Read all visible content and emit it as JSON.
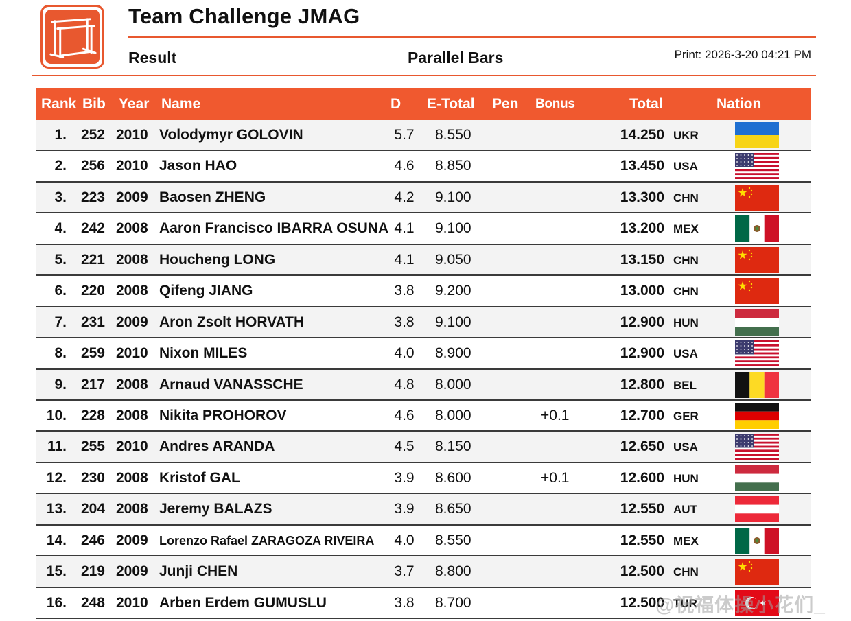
{
  "header": {
    "title": "Team Challenge JMAG",
    "section": "Result",
    "event": "Parallel Bars",
    "print": "Print: 2026-3-20 04:21 PM"
  },
  "columns": {
    "rank": "Rank",
    "bib": "Bib",
    "year": "Year",
    "name": "Name",
    "d": "D",
    "e_total": "E-Total",
    "pen": "Pen",
    "bonus": "Bonus",
    "total": "Total",
    "nation": "Nation"
  },
  "rows": [
    {
      "rank": "1.",
      "bib": "252",
      "year": "2010",
      "name": "Volodymyr GOLOVIN",
      "d": "5.7",
      "e": "8.550",
      "bonus": "",
      "total": "14.250",
      "nation": "UKR",
      "flag_icon": "ukraine-flag-icon"
    },
    {
      "rank": "2.",
      "bib": "256",
      "year": "2010",
      "name": "Jason HAO",
      "d": "4.6",
      "e": "8.850",
      "bonus": "",
      "total": "13.450",
      "nation": "USA",
      "flag_icon": "usa-flag-icon"
    },
    {
      "rank": "3.",
      "bib": "223",
      "year": "2009",
      "name": "Baosen ZHENG",
      "d": "4.2",
      "e": "9.100",
      "bonus": "",
      "total": "13.300",
      "nation": "CHN",
      "flag_icon": "china-flag-icon"
    },
    {
      "rank": "4.",
      "bib": "242",
      "year": "2008",
      "name": "Aaron Francisco IBARRA OSUNA",
      "d": "4.1",
      "e": "9.100",
      "bonus": "",
      "total": "13.200",
      "nation": "MEX",
      "flag_icon": "mexico-flag-icon"
    },
    {
      "rank": "5.",
      "bib": "221",
      "year": "2008",
      "name": "Houcheng LONG",
      "d": "4.1",
      "e": "9.050",
      "bonus": "",
      "total": "13.150",
      "nation": "CHN",
      "flag_icon": "china-flag-icon"
    },
    {
      "rank": "6.",
      "bib": "220",
      "year": "2008",
      "name": "Qifeng JIANG",
      "d": "3.8",
      "e": "9.200",
      "bonus": "",
      "total": "13.000",
      "nation": "CHN",
      "flag_icon": "china-flag-icon"
    },
    {
      "rank": "7.",
      "bib": "231",
      "year": "2009",
      "name": "Aron Zsolt HORVATH",
      "d": "3.8",
      "e": "9.100",
      "bonus": "",
      "total": "12.900",
      "nation": "HUN",
      "flag_icon": "hungary-flag-icon"
    },
    {
      "rank": "8.",
      "bib": "259",
      "year": "2010",
      "name": "Nixon MILES",
      "d": "4.0",
      "e": "8.900",
      "bonus": "",
      "total": "12.900",
      "nation": "USA",
      "flag_icon": "usa-flag-icon"
    },
    {
      "rank": "9.",
      "bib": "217",
      "year": "2008",
      "name": "Arnaud VANASSCHE",
      "d": "4.8",
      "e": "8.000",
      "bonus": "",
      "total": "12.800",
      "nation": "BEL",
      "flag_icon": "belgium-flag-icon"
    },
    {
      "rank": "10.",
      "bib": "228",
      "year": "2008",
      "name": "Nikita PROHOROV",
      "d": "4.6",
      "e": "8.000",
      "bonus": "+0.1",
      "total": "12.700",
      "nation": "GER",
      "flag_icon": "germany-flag-icon"
    },
    {
      "rank": "11.",
      "bib": "255",
      "year": "2010",
      "name": "Andres ARANDA",
      "d": "4.5",
      "e": "8.150",
      "bonus": "",
      "total": "12.650",
      "nation": "USA",
      "flag_icon": "usa-flag-icon"
    },
    {
      "rank": "12.",
      "bib": "230",
      "year": "2008",
      "name": "Kristof GAL",
      "d": "3.9",
      "e": "8.600",
      "bonus": "+0.1",
      "total": "12.600",
      "nation": "HUN",
      "flag_icon": "hungary-flag-icon"
    },
    {
      "rank": "13.",
      "bib": "204",
      "year": "2008",
      "name": "Jeremy BALAZS",
      "d": "3.9",
      "e": "8.650",
      "bonus": "",
      "total": "12.550",
      "nation": "AUT",
      "flag_icon": "austria-flag-icon"
    },
    {
      "rank": "14.",
      "bib": "246",
      "year": "2009",
      "name": "Lorenzo Rafael ZARAGOZA RIVEIRA",
      "d": "4.0",
      "e": "8.550",
      "bonus": "",
      "total": "12.550",
      "nation": "MEX",
      "flag_icon": "mexico-flag-icon"
    },
    {
      "rank": "15.",
      "bib": "219",
      "year": "2009",
      "name": "Junji CHEN",
      "d": "3.7",
      "e": "8.800",
      "bonus": "",
      "total": "12.500",
      "nation": "CHN",
      "flag_icon": "china-flag-icon"
    },
    {
      "rank": "16.",
      "bib": "248",
      "year": "2010",
      "name": "Arben Erdem GUMUSLU",
      "d": "3.8",
      "e": "8.700",
      "bonus": "",
      "total": "12.500",
      "nation": "TUR",
      "flag_icon": "turkey-flag-icon"
    }
  ],
  "watermark": "@祝福体操小花们_",
  "colors": {
    "accent": "#f0592f",
    "row_alt": "#f3f3f3",
    "rule": "#e8582f"
  }
}
